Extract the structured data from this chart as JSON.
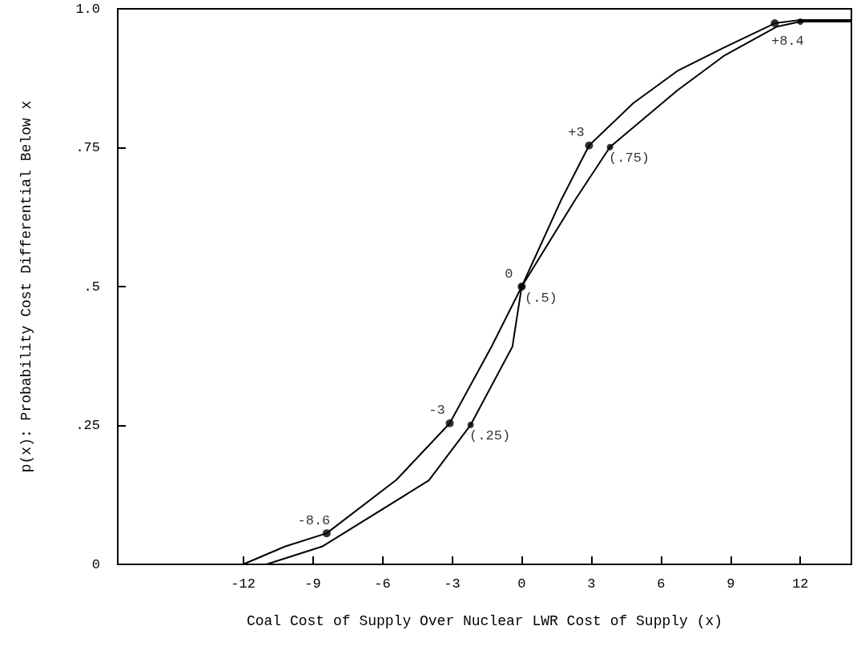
{
  "chart_data": {
    "type": "line",
    "xlabel": "Coal Cost of Supply Over Nuclear LWR Cost of Supply (x)",
    "ylabel": "p(x): Probability Cost Differential Below x",
    "xlim": [
      -17.4,
      14.2
    ],
    "ylim": [
      0,
      1
    ],
    "xticks": [
      -12,
      -9,
      -6,
      -3,
      0,
      3,
      6,
      9,
      12
    ],
    "yticks": [
      0,
      {
        "value": 0.25,
        "label": ".25"
      },
      {
        "value": 0.5,
        "label": ".5"
      },
      {
        "value": 0.75,
        "label": ".75"
      },
      {
        "value": 1,
        "label": "1.0"
      }
    ],
    "grid": false,
    "annotations": [
      {
        "text": "-8.6",
        "x": -8.4,
        "y": 0.056
      },
      {
        "text": "-3",
        "x": -3.1,
        "y": 0.254
      },
      {
        "text": "0",
        "x": 0,
        "y": 0.5
      },
      {
        "text": "+3",
        "x": 2.9,
        "y": 0.754
      },
      {
        "text": "+8.4",
        "x": 10.9,
        "y": 0.974
      }
    ],
    "series": [
      {
        "color": "#000000",
        "marker": "none",
        "x": [
          -12,
          -10.2,
          -8.4,
          -5.4,
          -3.1,
          -1.3,
          0,
          1.7,
          2.9,
          4.8,
          6.7,
          8.7,
          10.9,
          12,
          14.2
        ],
        "values": [
          0,
          0.032,
          0.056,
          0.152,
          0.254,
          0.392,
          0.5,
          0.656,
          0.754,
          0.83,
          0.888,
          0.93,
          0.974,
          0.98,
          0.98
        ]
      },
      {
        "color": "#000000",
        "marker": "none",
        "x": [
          -11,
          -8.6,
          -4,
          -2.2,
          -0.4,
          0,
          2.3,
          3.8,
          6.7,
          8.7,
          11,
          12,
          14.2
        ],
        "values": [
          0,
          0.032,
          0.151,
          0.251,
          0.392,
          0.5,
          0.656,
          0.751,
          0.853,
          0.915,
          0.968,
          0.977,
          0.977
        ]
      },
      {
        "type": "scatter",
        "color": "#000000",
        "marker": "circle",
        "x": [
          -8.4,
          -3.1,
          0,
          2.9,
          10.9
        ],
        "values": [
          0.056,
          0.254,
          0.5,
          0.754,
          0.974
        ]
      },
      {
        "type": "scatter",
        "color": "#000000",
        "marker": "circle",
        "x": [
          -2.2,
          0,
          3.8,
          12
        ],
        "values": [
          0.251,
          0.5,
          0.751,
          0.977
        ],
        "value_labels": [
          "(.25)",
          "(.5)",
          "(.75)",
          null
        ]
      }
    ]
  }
}
